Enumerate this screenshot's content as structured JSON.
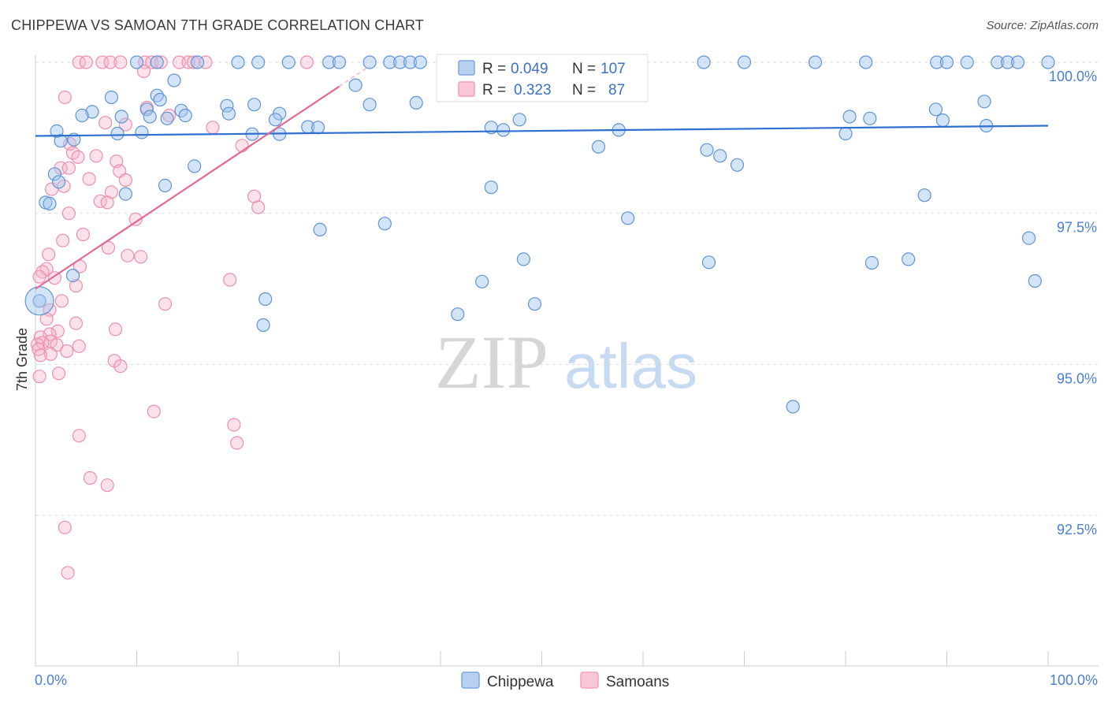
{
  "title": "CHIPPEWA VS SAMOAN 7TH GRADE CORRELATION CHART",
  "source": "Source: ZipAtlas.com",
  "colors": {
    "chippewa": "#7aa7e0",
    "samoans": "#f2a0b8",
    "chippewa_line": "#2f6fd0",
    "samoans_line": "#e06b92",
    "accent_text": "#3b70c6"
  },
  "legend": [
    {
      "r_label": "R =",
      "r_value": "0.049",
      "n_label": "N =",
      "n_value": "107"
    },
    {
      "r_label": "R =",
      "r_value": "0.323",
      "n_label": "N =",
      "n_value": "87"
    }
  ],
  "bottom_legend": [
    "Chippewa",
    "Samoans"
  ],
  "watermark": {
    "zip": "ZIP",
    "atlas": "atlas"
  },
  "chart_data": {
    "type": "scatter",
    "xlabel": "",
    "ylabel": "7th Grade",
    "xlim": [
      0,
      100
    ],
    "ylim": [
      90.9,
      100.3
    ],
    "x_tick_labels": [
      "0.0%",
      "100.0%"
    ],
    "y_ticks": [
      92.5,
      95.0,
      97.5,
      100.0
    ],
    "y_tick_labels": [
      "92.5%",
      "95.0%",
      "97.5%",
      "100.0%"
    ],
    "grid": true,
    "legend_position": "top-center",
    "series": [
      {
        "name": "Chippewa",
        "trend": {
          "x": [
            0,
            100
          ],
          "y": [
            98.78,
            98.95
          ]
        },
        "points": [
          [
            10,
            100
          ],
          [
            12,
            100
          ],
          [
            16,
            100
          ],
          [
            20,
            100
          ],
          [
            22,
            100
          ],
          [
            25,
            100
          ],
          [
            29,
            100
          ],
          [
            30,
            100
          ],
          [
            33,
            100
          ],
          [
            35,
            100
          ],
          [
            36,
            100
          ],
          [
            37,
            100
          ],
          [
            38,
            100
          ],
          [
            41,
            100
          ],
          [
            43,
            100
          ],
          [
            46,
            100
          ],
          [
            50,
            100
          ],
          [
            55,
            100
          ],
          [
            66,
            100
          ],
          [
            70,
            100
          ],
          [
            77,
            100
          ],
          [
            82,
            100
          ],
          [
            89,
            100
          ],
          [
            90,
            100
          ],
          [
            92,
            100
          ],
          [
            95,
            100
          ],
          [
            96,
            100
          ],
          [
            97,
            100
          ],
          [
            100,
            100
          ],
          [
            13.7,
            99.7
          ],
          [
            31.6,
            99.62
          ],
          [
            12,
            99.45
          ],
          [
            7.5,
            99.42
          ],
          [
            12.3,
            99.38
          ],
          [
            33,
            99.3
          ],
          [
            37.6,
            99.33
          ],
          [
            18.9,
            99.28
          ],
          [
            21.6,
            99.3
          ],
          [
            93.7,
            99.35
          ],
          [
            88.9,
            99.22
          ],
          [
            11,
            99.22
          ],
          [
            5.6,
            99.18
          ],
          [
            14.4,
            99.2
          ],
          [
            14.8,
            99.12
          ],
          [
            19.1,
            99.15
          ],
          [
            24.1,
            99.15
          ],
          [
            4.6,
            99.12
          ],
          [
            8.5,
            99.1
          ],
          [
            11.3,
            99.1
          ],
          [
            13,
            99.07
          ],
          [
            47.8,
            99.05
          ],
          [
            23.7,
            99.05
          ],
          [
            80.4,
            99.1
          ],
          [
            82.4,
            99.07
          ],
          [
            89.6,
            99.04
          ],
          [
            93.9,
            98.95
          ],
          [
            26.9,
            98.93
          ],
          [
            27.9,
            98.92
          ],
          [
            45,
            98.92
          ],
          [
            46.2,
            98.88
          ],
          [
            57.6,
            98.88
          ],
          [
            80,
            98.82
          ],
          [
            2.1,
            98.86
          ],
          [
            8.1,
            98.82
          ],
          [
            10.5,
            98.84
          ],
          [
            21.4,
            98.81
          ],
          [
            24.1,
            98.81
          ],
          [
            3.8,
            98.72
          ],
          [
            2.5,
            98.7
          ],
          [
            55.6,
            98.6
          ],
          [
            66.3,
            98.55
          ],
          [
            67.6,
            98.45
          ],
          [
            69.3,
            98.3
          ],
          [
            15.7,
            98.28
          ],
          [
            1.9,
            98.15
          ],
          [
            2.3,
            98.02
          ],
          [
            12.8,
            97.96
          ],
          [
            45,
            97.93
          ],
          [
            87.8,
            97.8
          ],
          [
            8.9,
            97.82
          ],
          [
            1,
            97.68
          ],
          [
            1.4,
            97.66
          ],
          [
            58.5,
            97.42
          ],
          [
            34.5,
            97.33
          ],
          [
            28.1,
            97.23
          ],
          [
            98.1,
            97.09
          ],
          [
            48.2,
            96.74
          ],
          [
            82.6,
            96.68
          ],
          [
            86.2,
            96.74
          ],
          [
            66.5,
            96.69
          ],
          [
            3.7,
            96.47
          ],
          [
            44.1,
            96.37
          ],
          [
            98.7,
            96.38
          ],
          [
            0.4,
            96.05
          ],
          [
            22.7,
            96.08
          ],
          [
            49.3,
            96.0
          ],
          [
            41.7,
            95.83
          ],
          [
            22.5,
            95.65
          ],
          [
            74.8,
            94.3
          ]
        ]
      },
      {
        "name": "Samoans",
        "trend": {
          "x": [
            0,
            30
          ],
          "y": [
            96.25,
            99.6
          ]
        },
        "points": [
          [
            4.3,
            100
          ],
          [
            5,
            100
          ],
          [
            6.6,
            100
          ],
          [
            7.4,
            100
          ],
          [
            8.4,
            100
          ],
          [
            10.8,
            100
          ],
          [
            11.5,
            100
          ],
          [
            12.4,
            100
          ],
          [
            14.2,
            100
          ],
          [
            15.1,
            100
          ],
          [
            15.6,
            100
          ],
          [
            16.8,
            100
          ],
          [
            26.8,
            100
          ],
          [
            10.7,
            99.85
          ],
          [
            2.9,
            99.42
          ],
          [
            11,
            99.25
          ],
          [
            13.2,
            99.12
          ],
          [
            6.9,
            99.0
          ],
          [
            8.9,
            98.97
          ],
          [
            17.5,
            98.92
          ],
          [
            3.4,
            98.65
          ],
          [
            20.4,
            98.62
          ],
          [
            3.7,
            98.5
          ],
          [
            6,
            98.45
          ],
          [
            4.2,
            98.43
          ],
          [
            8,
            98.36
          ],
          [
            2.5,
            98.25
          ],
          [
            3.3,
            98.25
          ],
          [
            8.3,
            98.2
          ],
          [
            5.3,
            98.07
          ],
          [
            8.9,
            98.05
          ],
          [
            2.8,
            97.95
          ],
          [
            1.6,
            97.9
          ],
          [
            7.5,
            97.85
          ],
          [
            21.6,
            97.78
          ],
          [
            6.4,
            97.7
          ],
          [
            7.1,
            97.68
          ],
          [
            22,
            97.6
          ],
          [
            3.3,
            97.5
          ],
          [
            9.9,
            97.4
          ],
          [
            4.7,
            97.15
          ],
          [
            2.7,
            97.05
          ],
          [
            7.2,
            96.93
          ],
          [
            1.3,
            96.82
          ],
          [
            9.1,
            96.8
          ],
          [
            10.4,
            96.78
          ],
          [
            4.4,
            96.62
          ],
          [
            1.1,
            96.58
          ],
          [
            0.7,
            96.53
          ],
          [
            0.4,
            96.45
          ],
          [
            1.9,
            96.43
          ],
          [
            19.2,
            96.4
          ],
          [
            4,
            96.3
          ],
          [
            2.6,
            96.05
          ],
          [
            12.8,
            96.0
          ],
          [
            1.4,
            95.9
          ],
          [
            1.1,
            95.75
          ],
          [
            4,
            95.68
          ],
          [
            7.9,
            95.58
          ],
          [
            2.2,
            95.55
          ],
          [
            1.4,
            95.5
          ],
          [
            0.5,
            95.45
          ],
          [
            1.5,
            95.38
          ],
          [
            0.7,
            95.36
          ],
          [
            0.2,
            95.33
          ],
          [
            2.1,
            95.32
          ],
          [
            4.3,
            95.3
          ],
          [
            0.3,
            95.25
          ],
          [
            3.1,
            95.22
          ],
          [
            1.5,
            95.17
          ],
          [
            0.5,
            95.15
          ],
          [
            7.8,
            95.06
          ],
          [
            8.4,
            94.97
          ],
          [
            2.3,
            94.85
          ],
          [
            0.4,
            94.8
          ],
          [
            11.7,
            94.22
          ],
          [
            19.6,
            94.0
          ],
          [
            4.3,
            93.82
          ],
          [
            19.9,
            93.7
          ],
          [
            5.4,
            93.12
          ],
          [
            7.1,
            93.0
          ],
          [
            2.9,
            92.3
          ],
          [
            3.2,
            91.55
          ]
        ]
      }
    ]
  }
}
